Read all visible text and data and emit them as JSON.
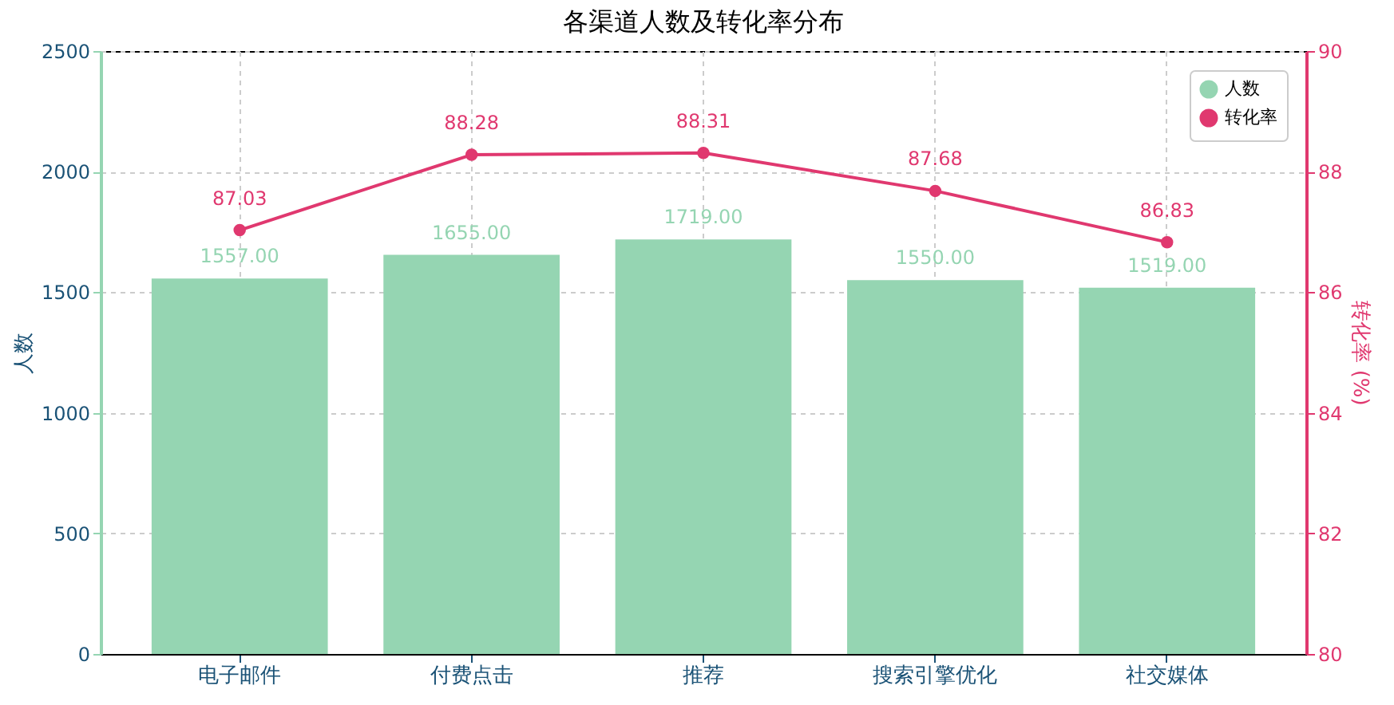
{
  "chart_data": {
    "type": "bar",
    "title": "各渠道人数及转化率分布",
    "ylabel": "人数",
    "y2label": "转化率 (%)",
    "categories": [
      "电子邮件",
      "付费点击",
      "推荐",
      "搜索引擎优化",
      "社交媒体"
    ],
    "series": [
      {
        "name": "人数",
        "color": "#95d5b2",
        "values": [
          1557,
          1655,
          1719,
          1550,
          1519
        ],
        "value_labels": [
          "1557.00",
          "1655.00",
          "1719.00",
          "1550.00",
          "1519.00"
        ]
      },
      {
        "name": "转化率",
        "type": "line",
        "axis": "y2",
        "color": "#e0386f",
        "values": [
          87.03,
          88.28,
          88.31,
          87.68,
          86.83
        ],
        "value_labels": [
          "87.03",
          "88.28",
          "88.31",
          "87.68",
          "86.83"
        ]
      }
    ],
    "ylim": [
      0,
      2500
    ],
    "yticks": [
      0,
      500,
      1000,
      1500,
      2000,
      2500
    ],
    "y2lim": [
      80,
      90
    ],
    "y2ticks": [
      80,
      82,
      84,
      86,
      88,
      90
    ],
    "grid": true,
    "legend": "top right",
    "marker": "circle",
    "line_style": "solid"
  }
}
